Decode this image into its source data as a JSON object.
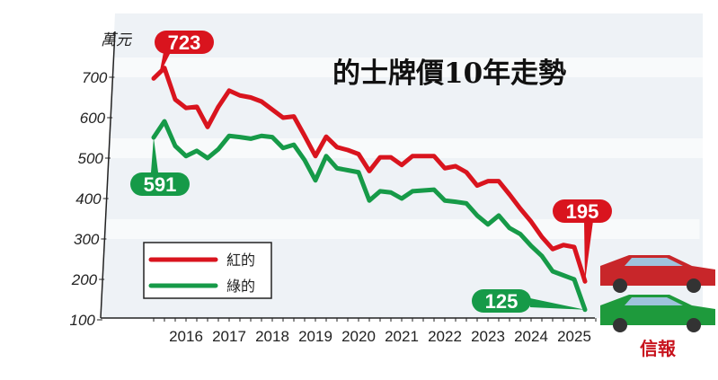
{
  "chart_data": {
    "type": "line",
    "title": "的士牌價10年走勢",
    "ylabel": "萬元",
    "ylim": [
      100,
      750
    ],
    "yticks": [
      "700",
      "600",
      "500",
      "400",
      "300",
      "200",
      "100"
    ],
    "xticks": [
      "2016",
      "2017",
      "2018",
      "2019",
      "2020",
      "2021",
      "2022",
      "2023",
      "2024",
      "2025"
    ],
    "x_start": 2015.25,
    "x_step": 0.25,
    "series": [
      {
        "name": "紅的",
        "color": "#d9141e",
        "values": [
          697,
          723,
          645,
          624,
          627,
          577,
          627,
          667,
          655,
          650,
          640,
          620,
          600,
          603,
          555,
          505,
          553,
          527,
          520,
          510,
          468,
          502,
          502,
          483,
          505,
          505,
          505,
          475,
          480,
          465,
          432,
          443,
          443,
          410,
          375,
          343,
          305,
          275,
          285,
          280,
          195
        ]
      },
      {
        "name": "綠的",
        "color": "#169a48",
        "values": [
          551,
          591,
          530,
          505,
          518,
          500,
          522,
          555,
          552,
          548,
          555,
          552,
          525,
          533,
          495,
          445,
          505,
          475,
          470,
          465,
          395,
          418,
          415,
          400,
          418,
          420,
          422,
          395,
          392,
          388,
          358,
          336,
          358,
          327,
          312,
          283,
          258,
          220,
          210,
          200,
          125
        ]
      }
    ],
    "annotations": [
      {
        "label": "723",
        "series": "紅的"
      },
      {
        "label": "591",
        "series": "綠的"
      },
      {
        "label": "195",
        "series": "紅的"
      },
      {
        "label": "125",
        "series": "綠的"
      }
    ],
    "legend": "bottom-left",
    "grid": false
  },
  "source_logo": "信報"
}
